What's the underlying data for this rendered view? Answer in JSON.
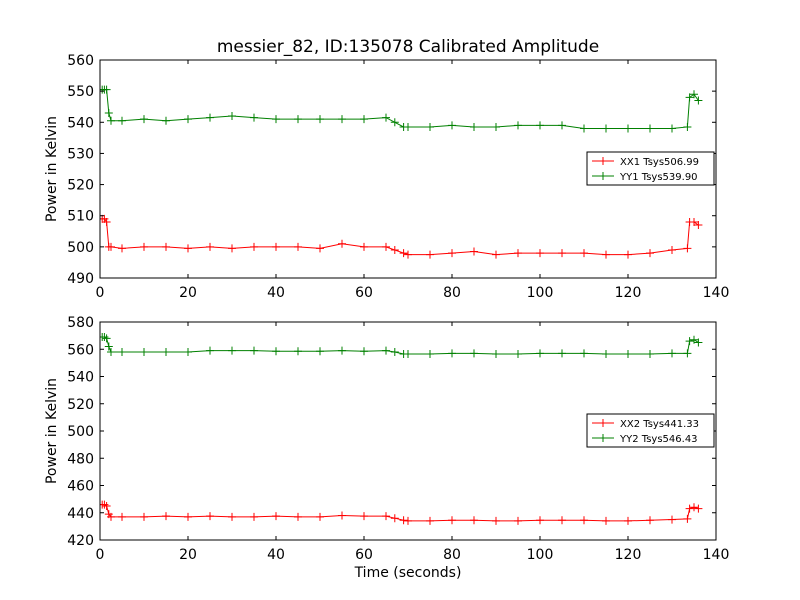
{
  "chart_data": [
    {
      "type": "line",
      "title": "messier_82, ID:135078 Calibrated Amplitude",
      "xlabel": "",
      "ylabel": "Power in Kelvin",
      "xlim": [
        0,
        140
      ],
      "ylim": [
        490,
        560
      ],
      "xticks": [
        "0",
        "20",
        "40",
        "60",
        "80",
        "100",
        "120",
        "140"
      ],
      "yticks": [
        "490",
        "500",
        "510",
        "520",
        "530",
        "540",
        "550",
        "560"
      ],
      "legend_position": "center-right",
      "grid": false,
      "series": [
        {
          "name": "XX1 Tsys506.99",
          "color": "#ff0000",
          "marker": "plus",
          "x": [
            0.5,
            1,
            1.5,
            2,
            2.5,
            5,
            10,
            15,
            20,
            25,
            30,
            35,
            40,
            45,
            50,
            55,
            60,
            65,
            67,
            69,
            70,
            75,
            80,
            85,
            90,
            95,
            100,
            105,
            110,
            115,
            120,
            125,
            130,
            133.5,
            134,
            135,
            136
          ],
          "y": [
            509,
            509,
            508,
            500,
            500,
            499.5,
            500,
            500,
            499.5,
            500,
            499.5,
            500,
            500,
            500,
            499.5,
            501,
            500,
            500,
            499,
            498,
            497.5,
            497.5,
            498,
            498.5,
            497.5,
            498,
            498,
            498,
            498,
            497.5,
            497.5,
            498,
            499,
            499.5,
            508,
            508,
            507
          ]
        },
        {
          "name": "YY1 Tsys539.90",
          "color": "#008000",
          "marker": "plus",
          "x": [
            0.5,
            1,
            1.5,
            2,
            2.5,
            5,
            10,
            15,
            20,
            25,
            30,
            35,
            40,
            45,
            50,
            55,
            60,
            65,
            67,
            69,
            70,
            75,
            80,
            85,
            90,
            95,
            100,
            105,
            110,
            115,
            120,
            125,
            130,
            133.5,
            134,
            135,
            136
          ],
          "y": [
            550.5,
            550.5,
            550.5,
            543,
            540.5,
            540.5,
            541,
            540.5,
            541,
            541.5,
            542,
            541.5,
            541,
            541,
            541,
            541,
            541,
            541.5,
            540,
            538.5,
            538.5,
            538.5,
            539,
            538.5,
            538.5,
            539,
            539,
            539,
            538,
            538,
            538,
            538,
            538,
            538.5,
            548,
            549,
            547
          ]
        }
      ]
    },
    {
      "type": "line",
      "title": "",
      "xlabel": "Time (seconds)",
      "ylabel": "Power in Kelvin",
      "xlim": [
        0,
        140
      ],
      "ylim": [
        420,
        580
      ],
      "xticks": [
        "0",
        "20",
        "40",
        "60",
        "80",
        "100",
        "120",
        "140"
      ],
      "yticks": [
        "420",
        "440",
        "460",
        "480",
        "500",
        "520",
        "540",
        "560",
        "580"
      ],
      "legend_position": "center-right",
      "grid": false,
      "series": [
        {
          "name": "XX2 Tsys441.33",
          "color": "#ff0000",
          "marker": "plus",
          "x": [
            0.5,
            1,
            1.5,
            2,
            2.5,
            5,
            10,
            15,
            20,
            25,
            30,
            35,
            40,
            45,
            50,
            55,
            60,
            65,
            67,
            69,
            70,
            75,
            80,
            85,
            90,
            95,
            100,
            105,
            110,
            115,
            120,
            125,
            130,
            133.5,
            134,
            135,
            136
          ],
          "y": [
            446,
            446,
            445,
            439,
            437,
            437,
            437,
            437.5,
            437,
            437.5,
            437,
            437,
            437.5,
            437,
            437,
            438,
            437.5,
            437.5,
            436,
            434.5,
            434,
            434,
            434.5,
            434.5,
            434,
            434,
            434.5,
            434.5,
            434.5,
            434,
            434,
            434.5,
            435,
            435.5,
            443,
            444,
            443
          ]
        },
        {
          "name": "YY2 Tsys546.43",
          "color": "#008000",
          "marker": "plus",
          "x": [
            0.5,
            1,
            1.5,
            2,
            2.5,
            5,
            10,
            15,
            20,
            25,
            30,
            35,
            40,
            45,
            50,
            55,
            60,
            65,
            67,
            69,
            70,
            75,
            80,
            85,
            90,
            95,
            100,
            105,
            110,
            115,
            120,
            125,
            130,
            133.5,
            134,
            135,
            136
          ],
          "y": [
            569,
            569,
            568,
            562,
            558,
            558,
            558,
            558,
            558,
            559,
            559,
            559,
            558.5,
            558.5,
            558.5,
            559,
            558.5,
            559,
            558,
            556.5,
            556.5,
            556.5,
            557,
            557,
            556.5,
            556.5,
            557,
            557,
            557,
            556.5,
            556.5,
            556.5,
            557,
            557,
            566,
            567,
            565
          ]
        }
      ]
    }
  ]
}
